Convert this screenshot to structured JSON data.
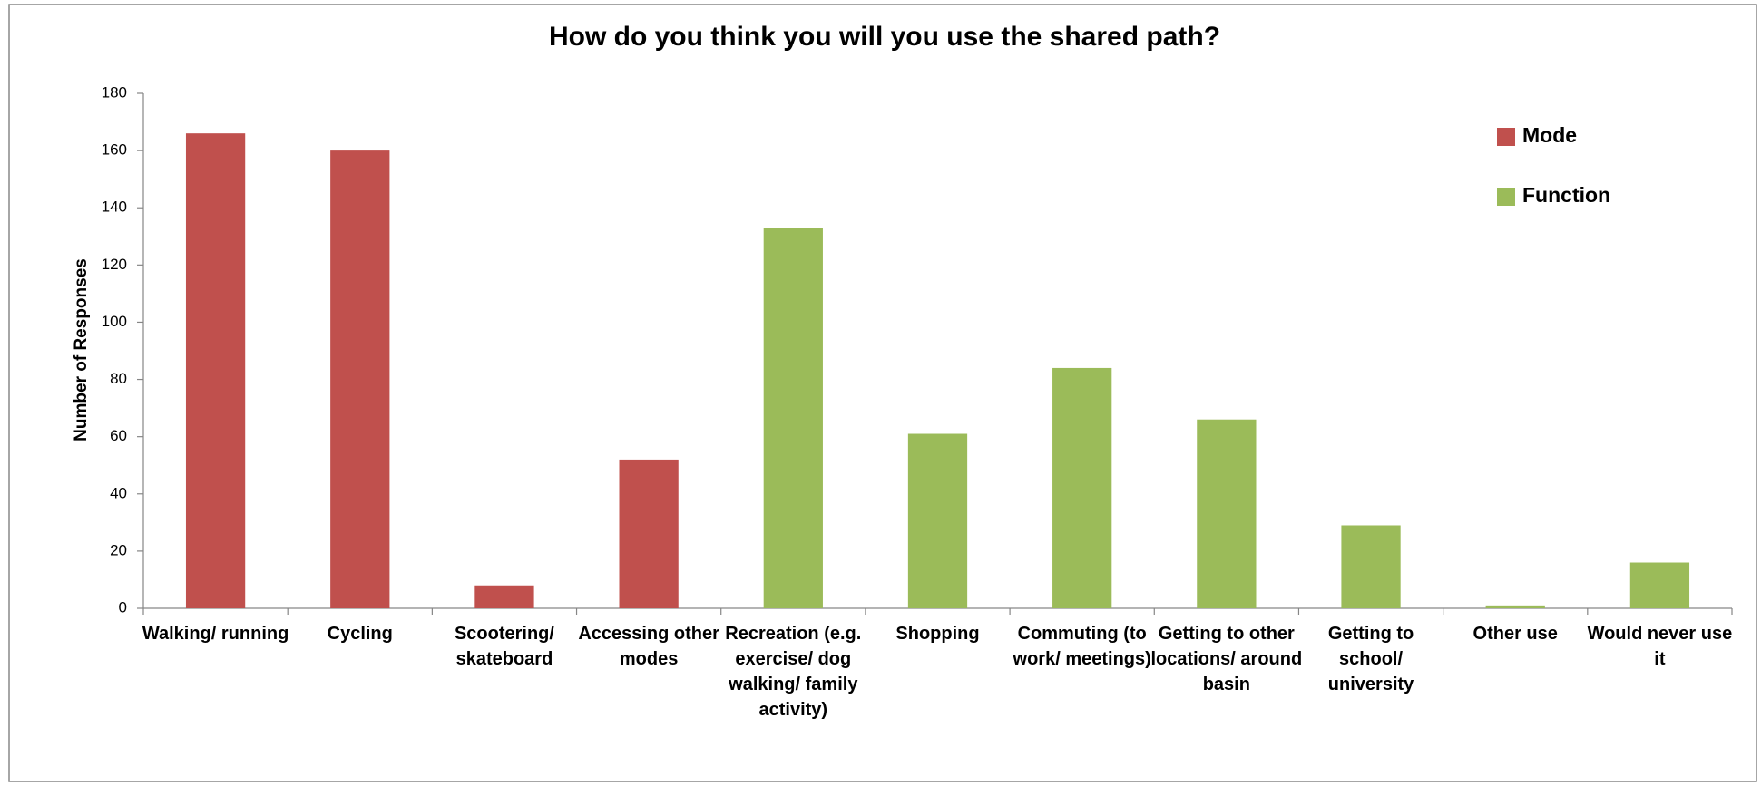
{
  "chart_data": {
    "type": "bar",
    "title": "How do you think you will you use the shared path?",
    "y_label": "Number of Responses",
    "categories": [
      "Walking/ running",
      "Cycling",
      "Scootering/ skateboard",
      "Accessing other modes",
      "Recreation (e.g. exercise/ dog walking/ family activity)",
      "Shopping",
      "Commuting (to work/ meetings)",
      "Getting to other locations/ around basin",
      "Getting to school/ university",
      "Other use",
      "Would never use it"
    ],
    "series": [
      {
        "name": "Mode",
        "color": "#c0504d",
        "values": [
          166,
          160,
          8,
          52,
          null,
          null,
          null,
          null,
          null,
          null,
          null
        ]
      },
      {
        "name": "Function",
        "color": "#9bbb59",
        "values": [
          null,
          null,
          null,
          null,
          133,
          61,
          84,
          66,
          29,
          1,
          16
        ]
      }
    ],
    "ylim": [
      0,
      180
    ],
    "yticks": [
      0,
      20,
      40,
      60,
      80,
      100,
      120,
      140,
      160,
      180
    ],
    "grid": false,
    "legend": "top-right"
  }
}
